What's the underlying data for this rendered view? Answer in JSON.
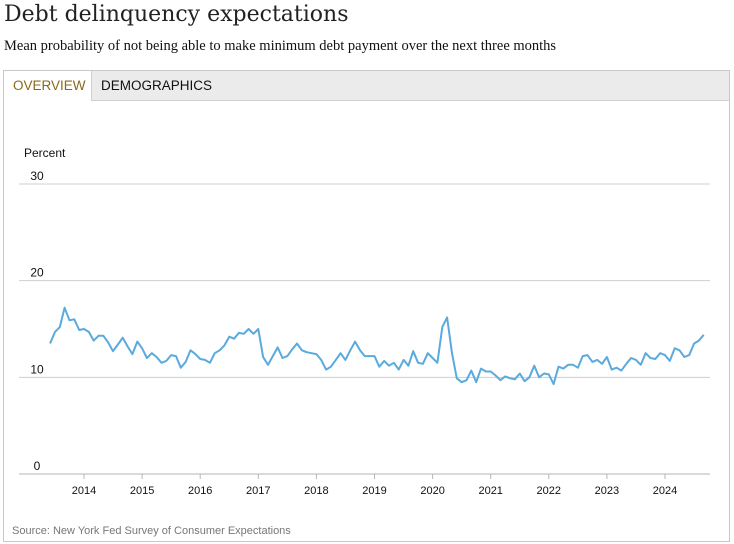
{
  "header": {
    "title": "Debt delinquency expectations",
    "subtitle": "Mean probability of not being able to make minimum debt payment over the next three months"
  },
  "tabs": [
    {
      "label": "OVERVIEW",
      "active": true
    },
    {
      "label": "DEMOGRAPHICS",
      "active": false
    }
  ],
  "source": "Source: New York Fed Survey of Consumer Expectations",
  "chart_data": {
    "type": "line",
    "ylabel": "Percent",
    "ylim": [
      0,
      30
    ],
    "yticks": [
      0,
      10,
      20,
      30
    ],
    "xlim": [
      2013.42,
      2024.92
    ],
    "xticks": [
      "2014",
      "2015",
      "2016",
      "2017",
      "2018",
      "2019",
      "2020",
      "2021",
      "2022",
      "2023",
      "2024"
    ],
    "grid": "horizontal",
    "line_color": "#5aaadd",
    "series": [
      {
        "name": "",
        "x_start": "2013-06",
        "frequency": "monthly",
        "values": [
          13.5,
          14.7,
          15.2,
          17.2,
          15.9,
          16.0,
          14.9,
          15.0,
          14.7,
          13.8,
          14.3,
          14.3,
          13.6,
          12.7,
          13.4,
          14.1,
          13.2,
          12.4,
          13.7,
          13.0,
          12.0,
          12.5,
          12.1,
          11.5,
          11.7,
          12.3,
          12.2,
          11.0,
          11.6,
          12.8,
          12.4,
          11.9,
          11.8,
          11.5,
          12.5,
          12.8,
          13.3,
          14.2,
          14.0,
          14.6,
          14.5,
          15.0,
          14.5,
          15.0,
          12.1,
          11.3,
          12.2,
          13.1,
          12.0,
          12.2,
          12.9,
          13.5,
          12.8,
          12.6,
          12.5,
          12.4,
          11.8,
          10.8,
          11.1,
          11.8,
          12.5,
          11.8,
          12.8,
          13.7,
          12.8,
          12.2,
          12.2,
          12.2,
          11.1,
          11.7,
          11.2,
          11.5,
          10.8,
          11.8,
          11.2,
          12.7,
          11.5,
          11.4,
          12.5,
          12.0,
          11.5,
          15.2,
          16.2,
          12.5,
          9.9,
          9.5,
          9.7,
          10.7,
          9.5,
          10.9,
          10.6,
          10.6,
          10.2,
          9.7,
          10.1,
          9.9,
          9.8,
          10.4,
          9.6,
          10.0,
          11.2,
          10.0,
          10.4,
          10.3,
          9.3,
          11.1,
          10.9,
          11.3,
          11.3,
          11.0,
          12.2,
          12.3,
          11.6,
          11.8,
          11.4,
          12.1,
          10.8,
          11.0,
          10.7,
          11.4,
          12.0,
          11.8,
          11.3,
          12.5,
          12.0,
          11.9,
          12.5,
          12.3,
          11.7,
          13.0,
          12.8,
          12.1,
          12.3,
          13.5,
          13.8,
          14.4
        ]
      }
    ]
  }
}
